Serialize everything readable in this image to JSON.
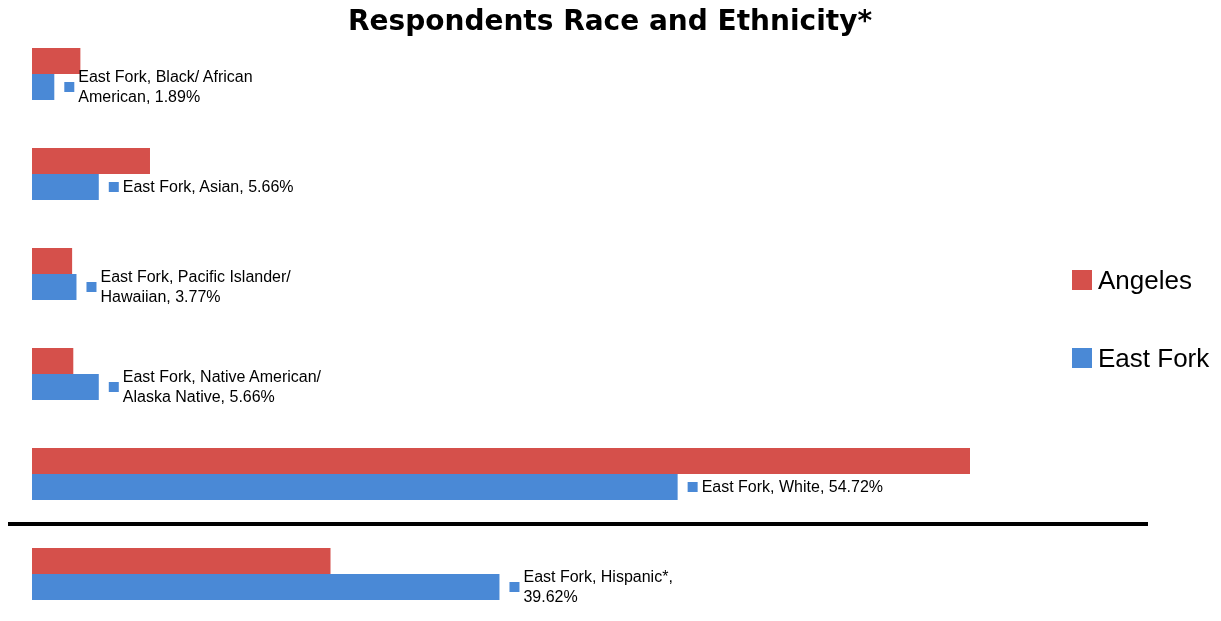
{
  "chart_data": {
    "type": "bar",
    "orientation": "horizontal",
    "title": "Respondents Race and Ethnicity*",
    "categories": [
      null,
      null,
      null,
      null,
      null,
      null
    ],
    "legend": "right",
    "series": [
      {
        "name": "Angeles",
        "color": "#d5504b",
        "values": [
          4.1,
          10.0,
          3.4,
          3.5,
          79.5,
          25.3
        ]
      },
      {
        "name": "East Fork",
        "color": "#4a89d6",
        "values": [
          1.89,
          5.66,
          3.77,
          5.66,
          54.72,
          39.62
        ],
        "value_labels": [
          "East Fork, Black/ African American, 1.89%",
          "East Fork, Asian, 5.66%",
          "East Fork, Pacific Islander/ Hawaiian, 3.77%",
          "East Fork, Native American/ Alaska Native, 5.66%",
          "East Fork, White, 54.72%",
          "East Fork, Hispanic*, 39.62%"
        ]
      }
    ]
  }
}
